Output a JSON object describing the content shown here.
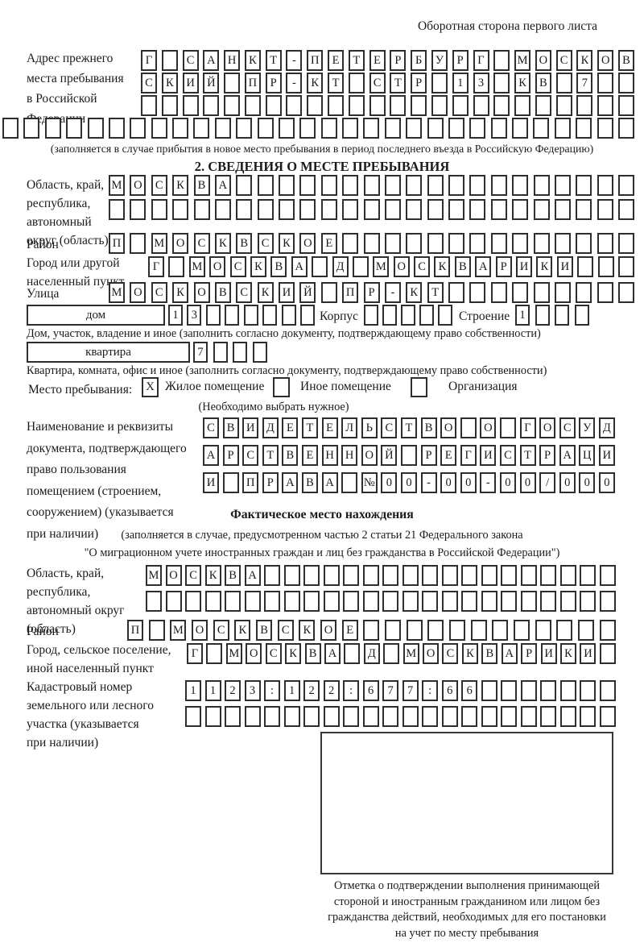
{
  "header": {
    "note": "Оборотная сторона первого листа"
  },
  "prev_address": {
    "label_lines": [
      "Адрес прежнего",
      "места пребывания",
      "в Российской",
      "Федерации"
    ],
    "rows": [
      {
        "len": 24,
        "text": "Г САНКТ-ПЕТЕРБУРГ МОСКОВ"
      },
      {
        "len": 24,
        "text": "СКИЙ ПР-КТ СТР 13 КВ 7"
      },
      {
        "len": 24,
        "text": ""
      },
      {
        "len": 30,
        "text": ""
      }
    ],
    "caption": "(заполняется в случае прибытия в новое место пребывания в период последнего въезда в Российскую Федерацию)"
  },
  "section2": {
    "title": "2. СВЕДЕНИЯ О МЕСТЕ ПРЕБЫВАНИЯ",
    "oblast": {
      "label_lines": [
        "Область, край,",
        "республика,",
        "автономный",
        "округ (область)"
      ],
      "rows": [
        {
          "len": 25,
          "text": "МОСКВА"
        },
        {
          "len": 25,
          "text": ""
        }
      ]
    },
    "raion": {
      "label": "Район",
      "row": {
        "len": 25,
        "text": "П МОСКВСКОЕ"
      }
    },
    "gorod": {
      "label_lines": [
        "Город или другой",
        "населенный пункт"
      ],
      "row": {
        "len": 24,
        "text": "Г МОСКВА Д МОСКВАРИКИ"
      }
    },
    "ulitsa": {
      "label": "Улица",
      "row": {
        "len": 25,
        "text": "МОСКОВСКИЙ ПР-КТ"
      }
    },
    "dom": {
      "box_label": "дом",
      "cells": {
        "len": 8,
        "text": "13"
      },
      "korpus_label": "Корпус",
      "korpus_cells": {
        "len": 5,
        "text": ""
      },
      "stroenie_label": "Строение",
      "stroenie_cells": {
        "len": 4,
        "text": "1"
      },
      "caption": "Дом, участок, владение и иное (заполнить согласно документу, подтверждающему право собственности)"
    },
    "kvartira": {
      "box_label": "квартира",
      "cells": {
        "len": 4,
        "text": "7"
      },
      "caption": "Квартира, комната, офис и иное (заполнить согласно документу, подтверждающему право собственности)"
    },
    "mesto": {
      "label": "Место пребывания:",
      "options": [
        {
          "mark": "X",
          "label": "Жилое помещение"
        },
        {
          "mark": "",
          "label": "Иное помещение"
        },
        {
          "mark": "",
          "label": "Организация"
        }
      ],
      "note": "(Необходимо выбрать нужное)"
    },
    "doc": {
      "label_lines": [
        "Наименование и реквизиты",
        "документа, подтверждающего",
        "право пользования",
        "помещением (строением,",
        "сооружением) (указывается",
        "при наличии)"
      ],
      "rows": [
        {
          "len": 21,
          "text": "СВИДЕТЕЛЬСТВО О ГОСУД"
        },
        {
          "len": 21,
          "text": "АРСТВЕННОЙ РЕГИСТРАЦИ"
        },
        {
          "len": 21,
          "text": "И ПРАВА №00-00-00/000"
        }
      ]
    }
  },
  "fact": {
    "title": "Фактическое место нахождения",
    "caption1": "(заполняется в случае, предусмотренном частью 2 статьи 21 Федерального закона",
    "caption2": "\"О миграционном учете иностранных граждан и лиц без гражданства в Российской Федерации\")",
    "oblast": {
      "label_lines": [
        "Область, край,",
        "республика,",
        "автономный округ",
        "(область)"
      ],
      "rows": [
        {
          "len": 24,
          "text": "МОСКВА"
        },
        {
          "len": 24,
          "text": ""
        }
      ]
    },
    "raion": {
      "label": "Район",
      "row": {
        "len": 23,
        "text": "П МОСКВСКОЕ"
      }
    },
    "gorod": {
      "label_lines": [
        "Город, сельское поселение,",
        "иной населенный пункт"
      ],
      "row": {
        "len": 22,
        "text": "Г МОСКВА Д МОСКВАРИКИ"
      }
    },
    "kadastr": {
      "label_lines": [
        "Кадастровый номер",
        "земельного или лесного",
        "участка (указывается",
        "при наличии)"
      ],
      "rows": [
        {
          "len": 22,
          "text": "1123:122:677:66"
        },
        {
          "len": 22,
          "text": ""
        }
      ]
    },
    "stamp_caption_lines": [
      "Отметка о подтверждении выполнения принимающей",
      "стороной и иностранным гражданином или лицом без",
      "гражданства действий, необходимых для его постановки",
      "на учет по месту пребывания"
    ]
  }
}
